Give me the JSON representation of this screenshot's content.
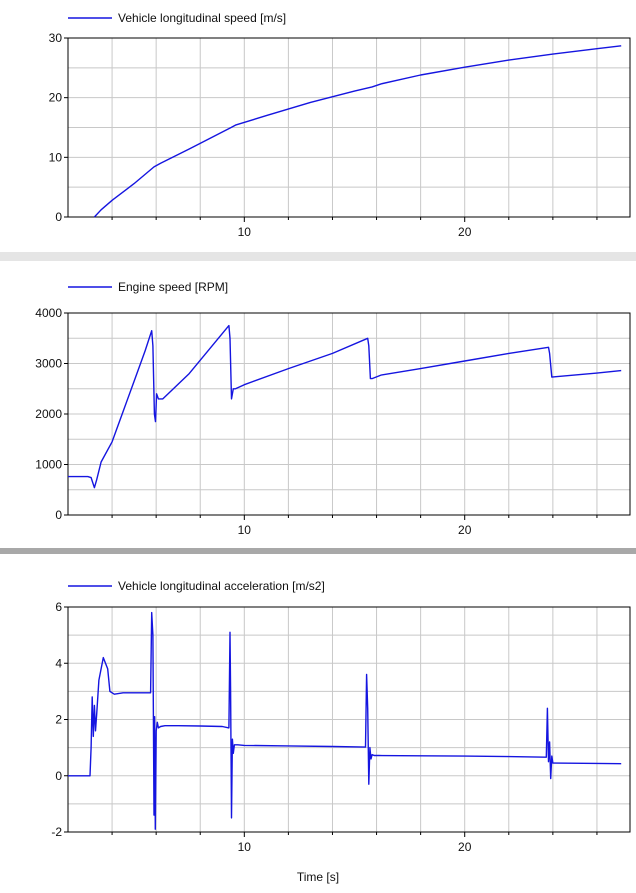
{
  "colors": {
    "series": "#1515e0",
    "grid": "#c8c8c8",
    "axis": "#000000",
    "separator": "#e5e5e5"
  },
  "xlabel": "Time [s]",
  "chart_data": [
    {
      "type": "line",
      "legend": "Vehicle longitudinal speed [m/s]",
      "xlim": [
        2,
        27.5
      ],
      "ylim": [
        0,
        30
      ],
      "xticks": [
        10,
        20
      ],
      "yticks": [
        0,
        10,
        20,
        30
      ],
      "series": [
        {
          "name": "Vehicle longitudinal speed [m/s]",
          "x": [
            3.2,
            3.5,
            4.0,
            5.0,
            5.9,
            6.2,
            7.5,
            9.4,
            9.6,
            11,
            13,
            15,
            15.8,
            16.2,
            18,
            20,
            22,
            24,
            26,
            27.1
          ],
          "y": [
            0,
            1.2,
            2.8,
            5.6,
            8.4,
            9.0,
            11.4,
            15.0,
            15.4,
            17.0,
            19.2,
            21.1,
            21.8,
            22.3,
            23.8,
            25.1,
            26.3,
            27.3,
            28.2,
            28.7
          ]
        }
      ]
    },
    {
      "type": "line",
      "legend": "Engine speed [RPM]",
      "xlim": [
        2,
        27.5
      ],
      "ylim": [
        0,
        4000
      ],
      "xticks": [
        10,
        20
      ],
      "yticks": [
        0,
        1000,
        2000,
        3000,
        4000
      ],
      "series": [
        {
          "name": "Engine speed [RPM]",
          "x": [
            2.0,
            2.9,
            3.05,
            3.2,
            3.3,
            3.5,
            4.0,
            4.5,
            5.0,
            5.5,
            5.8,
            5.85,
            5.92,
            5.97,
            6.02,
            6.1,
            6.3,
            7.5,
            9.3,
            9.35,
            9.42,
            9.5,
            9.6,
            10,
            12,
            14,
            15.6,
            15.65,
            15.72,
            15.8,
            16.2,
            18,
            20,
            22,
            23.8,
            23.85,
            23.95,
            24.2,
            26,
            27.1
          ],
          "y": [
            760,
            760,
            740,
            540,
            700,
            1050,
            1450,
            2050,
            2650,
            3250,
            3650,
            3350,
            2000,
            1850,
            2400,
            2300,
            2300,
            2800,
            3750,
            3500,
            2300,
            2500,
            2500,
            2580,
            2900,
            3200,
            3500,
            3350,
            2700,
            2700,
            2770,
            2900,
            3050,
            3200,
            3320,
            3200,
            2730,
            2740,
            2810,
            2860
          ]
        }
      ]
    },
    {
      "type": "line",
      "legend": "Vehicle longitudinal acceleration [m/s2]",
      "xlim": [
        2,
        27.5
      ],
      "ylim": [
        -2,
        6
      ],
      "xticks": [
        10,
        20
      ],
      "yticks": [
        -2,
        0,
        2,
        4,
        6
      ],
      "series": [
        {
          "name": "Vehicle longitudinal acceleration [m/s2]",
          "x": [
            2.0,
            3.0,
            3.05,
            3.1,
            3.15,
            3.2,
            3.25,
            3.3,
            3.4,
            3.6,
            3.8,
            3.9,
            4.1,
            4.5,
            5.0,
            5.5,
            5.75,
            5.8,
            5.85,
            5.9,
            5.93,
            5.96,
            6.0,
            6.05,
            6.1,
            6.2,
            6.4,
            7.0,
            8.0,
            9.0,
            9.3,
            9.35,
            9.38,
            9.42,
            9.46,
            9.5,
            9.55,
            9.7,
            10,
            12,
            14,
            15.5,
            15.55,
            15.6,
            15.65,
            15.7,
            15.75,
            15.8,
            15.9,
            16.1,
            18,
            20,
            22,
            23.7,
            23.75,
            23.8,
            23.85,
            23.9,
            23.95,
            24.0,
            24.1,
            26,
            27.1
          ],
          "y": [
            0,
            0,
            1.0,
            2.8,
            1.4,
            2.5,
            1.6,
            2.2,
            3.4,
            4.2,
            3.8,
            3.0,
            2.9,
            2.95,
            2.95,
            2.95,
            2.95,
            5.8,
            5.0,
            -1.4,
            2.1,
            -1.9,
            1.6,
            1.9,
            1.7,
            1.75,
            1.78,
            1.78,
            1.77,
            1.75,
            1.7,
            5.1,
            3.0,
            -1.5,
            1.3,
            0.8,
            1.1,
            1.1,
            1.08,
            1.06,
            1.04,
            1.02,
            3.6,
            2.4,
            -0.3,
            1.0,
            0.6,
            0.75,
            0.72,
            0.72,
            0.71,
            0.7,
            0.68,
            0.66,
            2.4,
            0.5,
            1.2,
            -0.1,
            0.7,
            0.45,
            0.45,
            0.44,
            0.43
          ]
        }
      ]
    }
  ]
}
